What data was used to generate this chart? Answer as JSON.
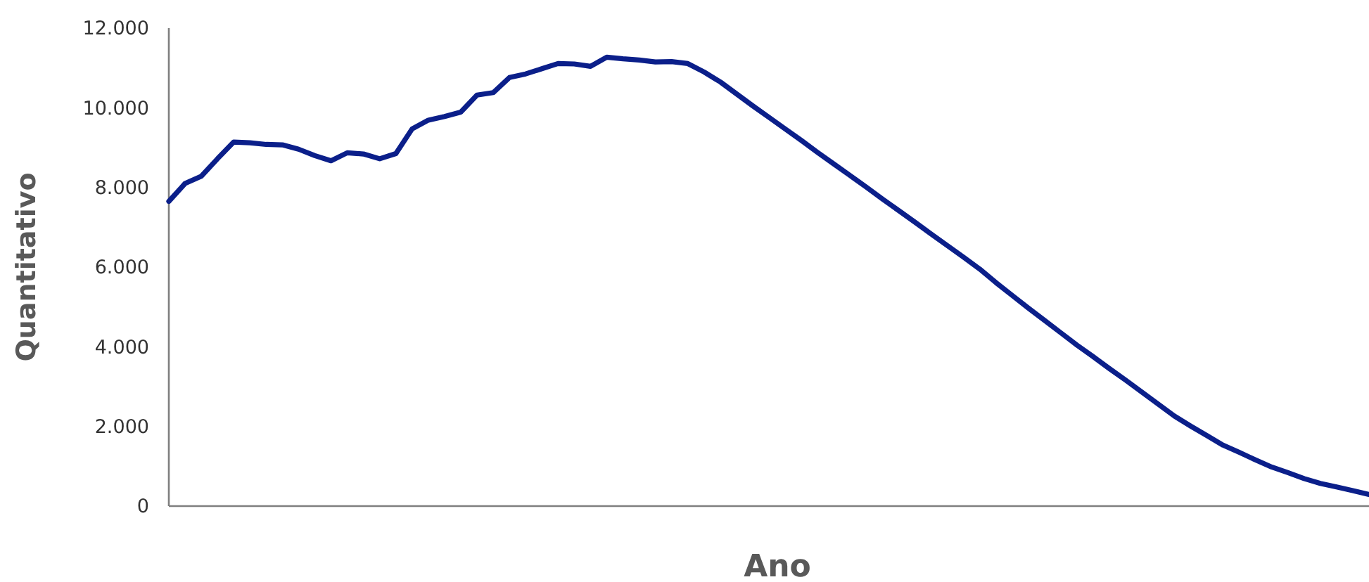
{
  "chart_data": {
    "type": "line",
    "xlabel": "Ano",
    "ylabel": "Quantitativo",
    "categories": [
      null,
      null,
      null,
      null,
      null,
      null,
      null,
      null,
      null,
      null,
      null,
      null,
      null,
      null,
      null,
      null,
      null,
      null,
      null,
      null,
      null,
      null,
      null,
      null,
      null,
      null,
      null,
      null,
      null,
      null,
      null,
      null,
      null,
      null,
      null,
      null,
      null,
      null,
      null,
      null,
      null,
      null,
      null,
      null,
      null,
      null,
      null,
      null,
      null,
      null,
      null,
      null,
      null,
      null,
      null,
      null,
      null,
      null,
      null,
      null,
      null,
      null,
      null,
      null,
      null,
      null,
      null,
      null,
      null,
      null,
      null,
      null,
      null,
      null,
      null
    ],
    "values": [
      7650,
      8100,
      8280,
      8720,
      9140,
      9120,
      9080,
      9070,
      8960,
      8800,
      8670,
      8870,
      8840,
      8720,
      8850,
      9470,
      9690,
      9780,
      9890,
      10320,
      10380,
      10760,
      10850,
      10980,
      11110,
      11100,
      11040,
      11270,
      11230,
      11200,
      11150,
      11160,
      11110,
      10900,
      10650,
      10350,
      10050,
      9760,
      9470,
      9180,
      8880,
      8590,
      8300,
      8010,
      7710,
      7420,
      7130,
      6830,
      6540,
      6250,
      5950,
      5610,
      5290,
      4970,
      4660,
      4350,
      4040,
      3750,
      3450,
      3160,
      2860,
      2560,
      2260,
      2010,
      1770,
      1530,
      1350,
      1160,
      980,
      840,
      690,
      570,
      480,
      390,
      290
    ],
    "color": "#0b1f8a",
    "ylim": [
      0,
      12000
    ],
    "yticks": [
      0,
      {
        "value": 2000,
        "label": "2.000"
      },
      {
        "value": 4000,
        "label": "4.000"
      },
      {
        "value": 6000,
        "label": "6.000"
      },
      {
        "value": 8000,
        "label": "8.000"
      },
      {
        "value": 10000,
        "label": "10.000"
      },
      {
        "value": 12000,
        "label": "12.000"
      }
    ],
    "tick_labels": "y"
  }
}
